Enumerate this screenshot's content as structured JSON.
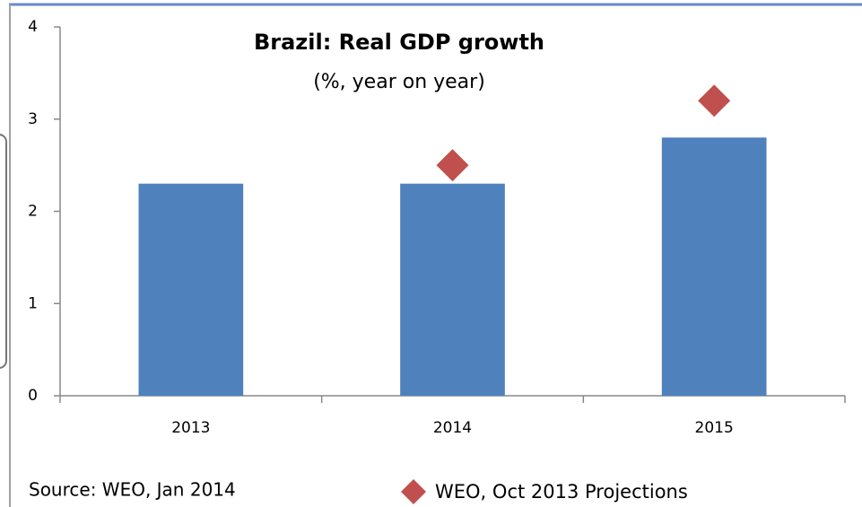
{
  "chart_data": {
    "type": "bar",
    "title": "Brazil: Real GDP growth",
    "subtitle": "(%, year on year)",
    "categories": [
      "2013",
      "2014",
      "2015"
    ],
    "series": [
      {
        "color": "#4f81bd",
        "values": [
          2.3,
          2.3,
          2.8
        ]
      },
      {
        "name": "WEO, Oct 2013 Projections",
        "color": "#c0504d",
        "marker": "diamond",
        "values": [
          null,
          2.5,
          3.2
        ]
      }
    ],
    "ylim": [
      0,
      4
    ],
    "yticks": [
      0,
      1,
      2,
      3,
      4
    ],
    "grid": false,
    "source": "Source: WEO, Jan 2014"
  }
}
